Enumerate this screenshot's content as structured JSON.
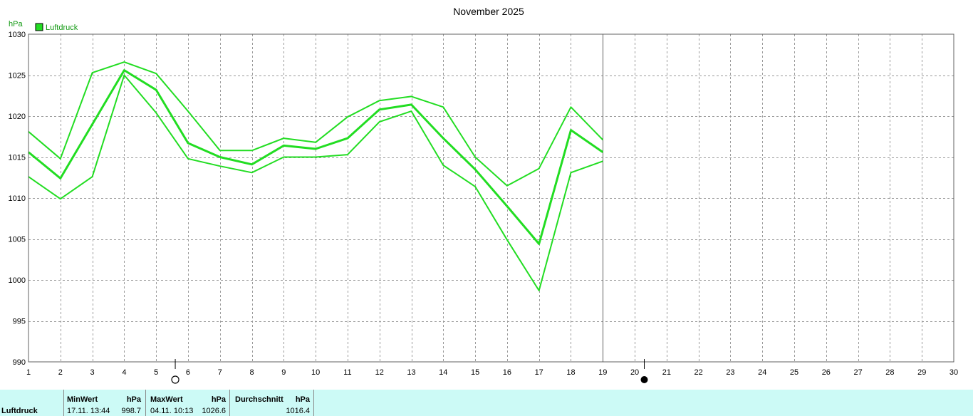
{
  "chart_data": {
    "type": "line",
    "title": "November 2025",
    "y_unit": "hPa",
    "ylim": [
      990,
      1030
    ],
    "y_ticks": [
      990,
      995,
      1000,
      1005,
      1010,
      1015,
      1020,
      1025,
      1030
    ],
    "xlim": [
      1,
      30
    ],
    "x_ticks": [
      1,
      2,
      3,
      4,
      5,
      6,
      7,
      8,
      9,
      10,
      11,
      12,
      13,
      14,
      15,
      16,
      17,
      18,
      19,
      20,
      21,
      22,
      23,
      24,
      25,
      26,
      27,
      28,
      29,
      30
    ],
    "grid": true,
    "legend": {
      "placement": "top-left",
      "entries": [
        {
          "label": "Luftdruck",
          "color": "#22dd22"
        }
      ]
    },
    "series": [
      {
        "name": "Luftdruck",
        "role": "average",
        "color": "#22dd22",
        "x": [
          1,
          2,
          3,
          4,
          5,
          6,
          7,
          8,
          9,
          10,
          11,
          12,
          13,
          14,
          15,
          16,
          17,
          18,
          19
        ],
        "values": [
          1015.6,
          1012.4,
          1019.0,
          1025.6,
          1023.2,
          1016.7,
          1015.0,
          1014.1,
          1016.4,
          1016.0,
          1017.3,
          1020.8,
          1021.4,
          1017.3,
          1013.5,
          1009.0,
          1004.4,
          1018.3,
          1015.6
        ]
      },
      {
        "role": "maximum",
        "color": "#22dd22",
        "x": [
          1,
          2,
          3,
          4,
          5,
          6,
          7,
          8,
          9,
          10,
          11,
          12,
          13,
          14,
          15,
          16,
          17,
          18,
          19
        ],
        "values": [
          1018.1,
          1014.8,
          1025.3,
          1026.6,
          1025.2,
          1020.6,
          1015.8,
          1015.8,
          1017.3,
          1016.8,
          1019.9,
          1021.9,
          1022.4,
          1021.1,
          1015.0,
          1011.5,
          1013.6,
          1021.1,
          1017.1
        ]
      },
      {
        "role": "minimum",
        "color": "#22dd22",
        "x": [
          1,
          2,
          3,
          4,
          5,
          6,
          7,
          8,
          9,
          10,
          11,
          12,
          13,
          14,
          15,
          16,
          17,
          18,
          19
        ],
        "values": [
          1012.6,
          1009.9,
          1012.6,
          1025.0,
          1020.4,
          1014.8,
          1013.9,
          1013.1,
          1015.0,
          1015.0,
          1015.3,
          1019.3,
          1020.6,
          1014.0,
          1011.4,
          1004.9,
          998.7,
          1013.1,
          1014.5
        ]
      }
    ],
    "current_day_marker": 19,
    "moon_phases": [
      {
        "phase": "full-moon",
        "x": 5.6
      },
      {
        "phase": "new-moon",
        "x": 20.3
      }
    ]
  },
  "stats": {
    "name": "Luftdruck",
    "min_header": "MinWert",
    "min_unit": "hPa",
    "min_date": "17.11.  13:44",
    "min_value": "998.7",
    "max_header": "MaxWert",
    "max_unit": "hPa",
    "max_date": "04.11.  10:13",
    "max_value": "1026.6",
    "avg_header": "Durchschnitt",
    "avg_unit": "hPa",
    "avg_value": "1016.4"
  }
}
